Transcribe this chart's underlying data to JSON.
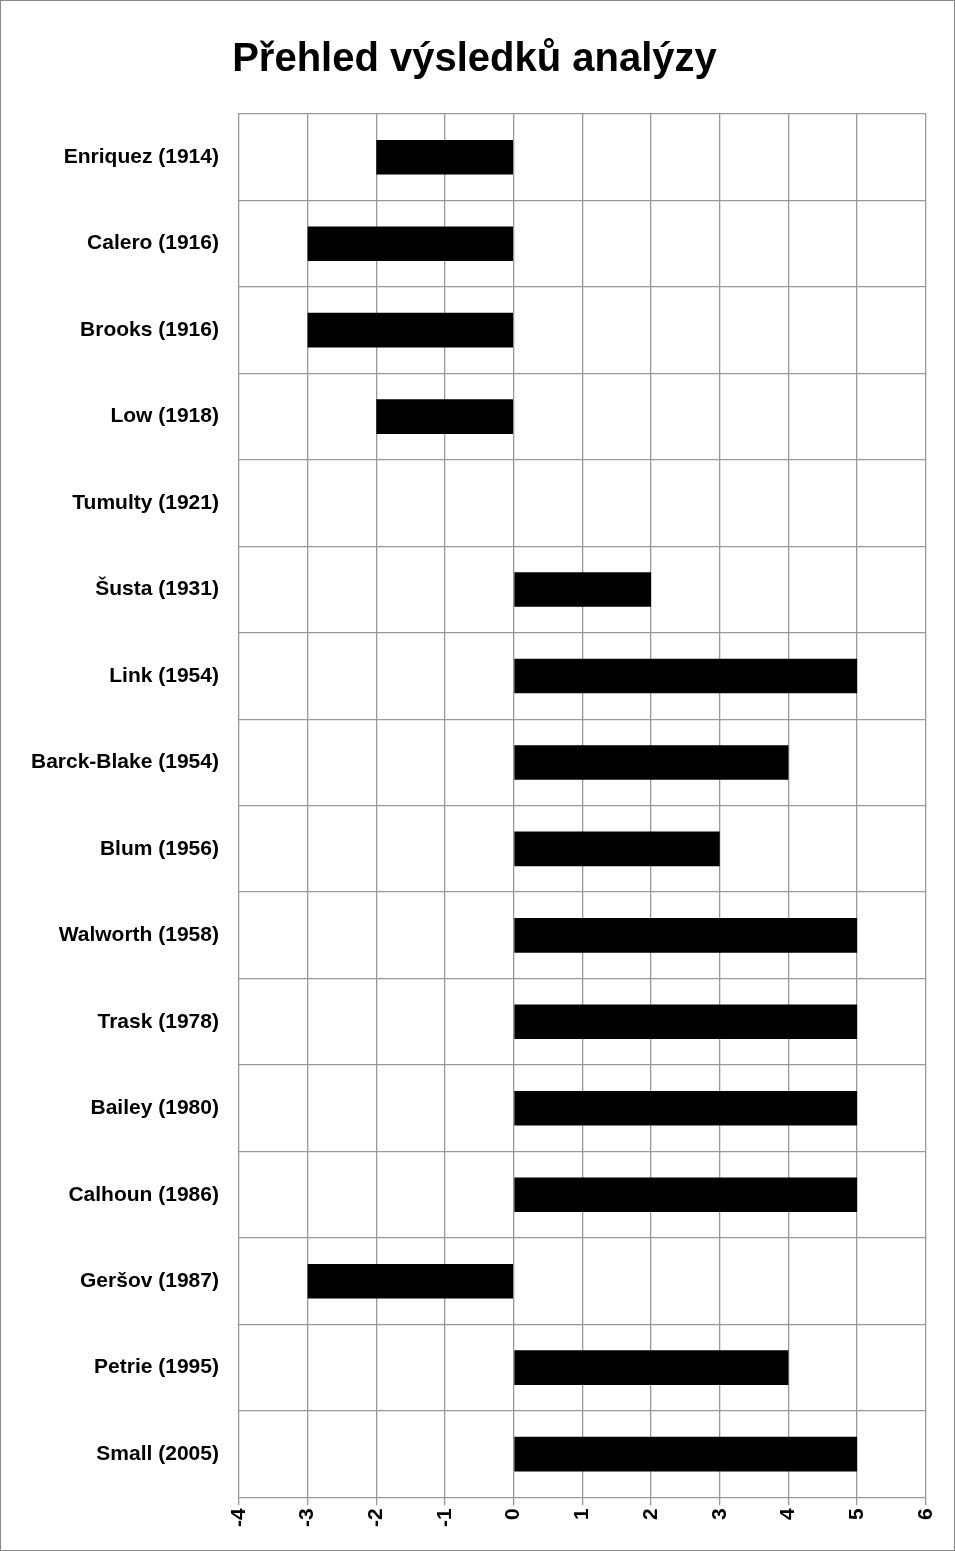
{
  "chart_data": {
    "type": "bar",
    "orientation": "horizontal",
    "title": "Přehled výsledků analýzy",
    "categories": [
      "Enriquez (1914)",
      "Calero (1916)",
      "Brooks (1916)",
      "Low (1918)",
      "Tumulty (1921)",
      "Šusta (1931)",
      "Link (1954)",
      "Barck-Blake (1954)",
      "Blum (1956)",
      "Walworth (1958)",
      "Trask (1978)",
      "Bailey (1980)",
      "Calhoun (1986)",
      "Geršov (1987)",
      "Petrie (1995)",
      "Small (2005)"
    ],
    "values": [
      -2,
      -3,
      -3,
      -2,
      0,
      2,
      5,
      4,
      3,
      5,
      5,
      5,
      5,
      -3,
      4,
      5
    ],
    "color": "#000000",
    "xlim": [
      -4,
      6
    ],
    "xticks": [
      -4,
      -3,
      -2,
      -1,
      0,
      1,
      2,
      3,
      4,
      5,
      6
    ],
    "grid": true,
    "legend": false
  }
}
